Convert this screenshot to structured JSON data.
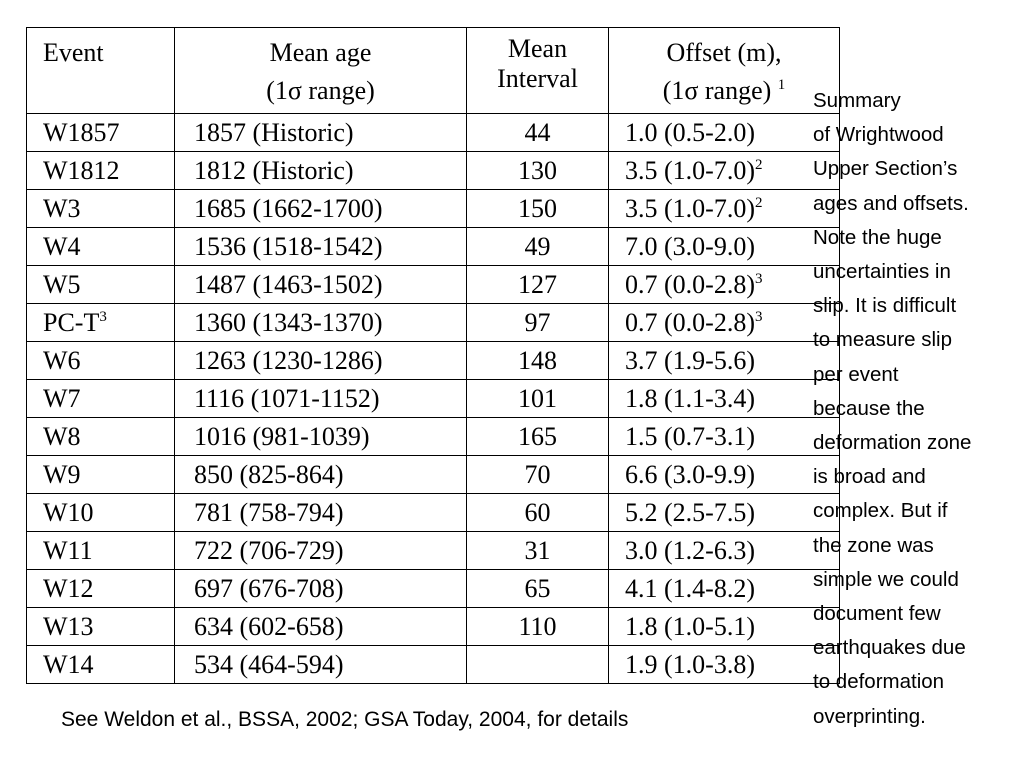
{
  "table": {
    "headers": {
      "event": "Event",
      "mean_age": [
        "Mean age",
        "(1σ range)"
      ],
      "mean_interval": [
        "Mean",
        "Interval"
      ],
      "offset": [
        "Offset (m),",
        "(1σ range)"
      ],
      "offset_footnote": "1"
    },
    "rows": [
      {
        "event": "W1857",
        "event_note": "",
        "age": "1857 (Historic)",
        "interval": "44",
        "offset": "1.0 (0.5-2.0)",
        "offset_note": ""
      },
      {
        "event": "W1812",
        "event_note": "",
        "age": "1812 (Historic)",
        "interval": "130",
        "offset": "3.5 (1.0-7.0)",
        "offset_note": "2"
      },
      {
        "event": "W3",
        "event_note": "",
        "age": "1685 (1662-1700)",
        "interval": "150",
        "offset": "3.5 (1.0-7.0)",
        "offset_note": "2"
      },
      {
        "event": "W4",
        "event_note": "",
        "age": "1536 (1518-1542)",
        "interval": "49",
        "offset": "7.0 (3.0-9.0)",
        "offset_note": ""
      },
      {
        "event": "W5",
        "event_note": "",
        "age": "1487 (1463-1502)",
        "interval": "127",
        "offset": "0.7 (0.0-2.8)",
        "offset_note": "3"
      },
      {
        "event": "PC-T",
        "event_note": "3",
        "age": "1360 (1343-1370)",
        "interval": "97",
        "offset": "0.7 (0.0-2.8)",
        "offset_note": "3"
      },
      {
        "event": "W6",
        "event_note": "",
        "age": "1263 (1230-1286)",
        "interval": "148",
        "offset": "3.7 (1.9-5.6)",
        "offset_note": ""
      },
      {
        "event": "W7",
        "event_note": "",
        "age": "1116 (1071-1152)",
        "interval": "101",
        "offset": "1.8 (1.1-3.4)",
        "offset_note": ""
      },
      {
        "event": "W8",
        "event_note": "",
        "age": "1016 (981-1039)",
        "interval": "165",
        "offset": "1.5 (0.7-3.1)",
        "offset_note": ""
      },
      {
        "event": "W9",
        "event_note": "",
        "age": "850 (825-864)",
        "interval": "70",
        "offset": "6.6 (3.0-9.9)",
        "offset_note": ""
      },
      {
        "event": "W10",
        "event_note": "",
        "age": "781 (758-794)",
        "interval": "60",
        "offset": "5.2 (2.5-7.5)",
        "offset_note": ""
      },
      {
        "event": "W11",
        "event_note": "",
        "age": "722 (706-729)",
        "interval": "31",
        "offset": "3.0 (1.2-6.3)",
        "offset_note": ""
      },
      {
        "event": "W12",
        "event_note": "",
        "age": "697 (676-708)",
        "interval": "65",
        "offset": "4.1 (1.4-8.2)",
        "offset_note": ""
      },
      {
        "event": "W13",
        "event_note": "",
        "age": "634 (602-658)",
        "interval": "110",
        "offset": "1.8 (1.0-5.1)",
        "offset_note": ""
      },
      {
        "event": "W14",
        "event_note": "",
        "age": "534 (464-594)",
        "interval": "",
        "offset": "1.9 (1.0-3.8)",
        "offset_note": ""
      }
    ]
  },
  "side_note_lines": [
    "Summary",
    "of Wrightwood",
    "Upper Section’s",
    "ages and offsets.",
    "Note the huge",
    "uncertainties in",
    "slip.  It is difficult",
    "to measure slip",
    "per event",
    "because the",
    "deformation zone",
    "is broad and",
    "complex.  But if",
    "the zone was",
    "simple we could",
    "document few",
    "earthquakes due",
    "to deformation",
    "overprinting."
  ],
  "footer": "See Weldon et al., BSSA, 2002; GSA Today, 2004, for details"
}
